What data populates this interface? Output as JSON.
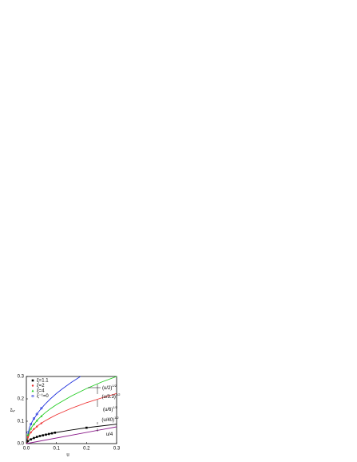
{
  "chart_data": {
    "type": "line",
    "x_label": "u",
    "y_label": "ξ*",
    "xlim": [
      0,
      0.3
    ],
    "ylim": [
      0,
      0.3
    ],
    "xticks": [
      {
        "value": 0,
        "label": "0.0"
      },
      0.1,
      0.2,
      0.3
    ],
    "yticks": [
      {
        "value": 0,
        "label": "0.0"
      },
      0.1,
      0.2,
      0.3
    ],
    "lines": [
      {
        "color": "#2233dd",
        "x": [
          0,
          0.01,
          0.02,
          0.04,
          0.06,
          0.08,
          0.1,
          0.12,
          0.15,
          0.18
        ],
        "values": [
          0,
          0.071,
          0.1,
          0.141,
          0.173,
          0.2,
          0.224,
          0.245,
          0.274,
          0.3
        ]
      },
      {
        "color": "#22cc22",
        "x": [
          0,
          0.01,
          0.02,
          0.04,
          0.06,
          0.08,
          0.1,
          0.15,
          0.2,
          0.25,
          0.3
        ],
        "values": [
          0,
          0.055,
          0.078,
          0.11,
          0.135,
          0.156,
          0.174,
          0.213,
          0.246,
          0.275,
          0.3
        ]
      },
      {
        "color": "#ee3333",
        "x": [
          0,
          0.01,
          0.02,
          0.04,
          0.06,
          0.08,
          0.1,
          0.15,
          0.2,
          0.25,
          0.3
        ],
        "values": [
          0,
          0.041,
          0.058,
          0.082,
          0.1,
          0.115,
          0.129,
          0.158,
          0.183,
          0.204,
          0.224
        ]
      },
      {
        "color": "#000000",
        "x": [
          0,
          0.01,
          0.02,
          0.04,
          0.06,
          0.08,
          0.1,
          0.15,
          0.2,
          0.25,
          0.3
        ],
        "values": [
          0,
          0.016,
          0.022,
          0.032,
          0.039,
          0.045,
          0.05,
          0.061,
          0.071,
          0.079,
          0.087
        ]
      },
      {
        "color": "#8a1a8a",
        "x": [
          0,
          0.3
        ],
        "values": [
          0,
          0.075
        ]
      }
    ],
    "series": [
      {
        "name": "ξ=1.1",
        "color": "#000000",
        "marker": "square",
        "x": [
          0.005,
          0.015,
          0.025,
          0.035,
          0.045,
          0.055,
          0.065,
          0.075,
          0.085,
          0.095,
          0.2
        ],
        "values": [
          0.011,
          0.019,
          0.025,
          0.03,
          0.034,
          0.037,
          0.04,
          0.043,
          0.046,
          0.049,
          0.071
        ]
      },
      {
        "name": "ξ=2",
        "color": "#ee3333",
        "marker": "circle",
        "x": [
          0.005,
          0.015,
          0.025,
          0.035,
          0.05
        ],
        "values": [
          0.029,
          0.05,
          0.065,
          0.076,
          0.091
        ]
      },
      {
        "name": "ξ=4",
        "color": "#22cc22",
        "marker": "triangle",
        "x": [
          0.005,
          0.015,
          0.025,
          0.035,
          0.05
        ],
        "values": [
          0.039,
          0.067,
          0.087,
          0.103,
          0.123
        ]
      },
      {
        "name": "ξ⁻¹=0",
        "color": "#2233dd",
        "marker": "open",
        "x": [
          0.005,
          0.015,
          0.025,
          0.035,
          0.05
        ],
        "values": [
          0.05,
          0.087,
          0.112,
          0.132,
          0.158
        ]
      }
    ],
    "annotations": [
      {
        "text": "(u/2)",
        "sup": "1/2"
      },
      {
        "text": "(u/3.3)",
        "sup": "1/2"
      },
      {
        "text": "(u/6)",
        "sup": "1/2"
      },
      {
        "text": "(u/40)",
        "sup": "1/2"
      },
      {
        "text": "u/4"
      }
    ]
  }
}
